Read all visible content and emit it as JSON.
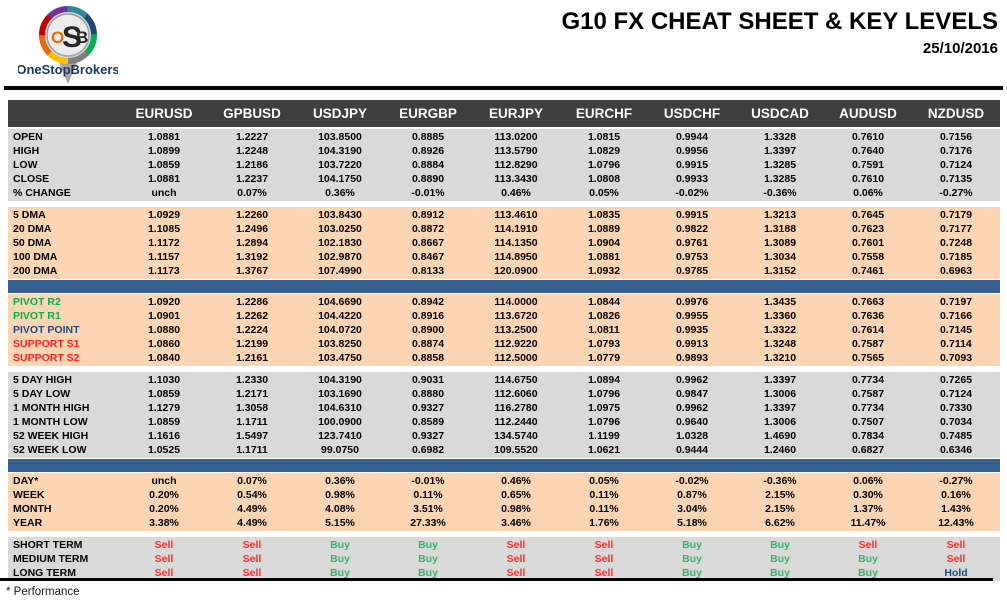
{
  "logo": {
    "monogram_o": "O",
    "monogram_s": "S",
    "monogram_b": "B",
    "subtext": "OneStopBrokers",
    "ring_colors": [
      "#7030a0",
      "#c00000",
      "#e36c0a",
      "#ffc000",
      "#31859c",
      "#1f497d",
      "#00b050",
      "#7f7f7f"
    ]
  },
  "header": {
    "title": "G10 FX CHEAT SHEET & KEY LEVELS",
    "date": "25/10/2016"
  },
  "footnote": "* Performance",
  "colors": {
    "header_bg": "#3f3f3f",
    "section_gray": "#d9d9d9",
    "section_peach": "#fcd5b4",
    "separator_blue": "#376092",
    "green": "#00b050",
    "red": "#ff1f1f",
    "navy": "#1f497d",
    "buy": "#3cb06e",
    "sell": "#ff2e2e",
    "hold": "#1f497d"
  },
  "table": {
    "columns": [
      "EURUSD",
      "GPBUSD",
      "USDJPY",
      "EURGBP",
      "EURJPY",
      "EURCHF",
      "USDCHF",
      "USDCAD",
      "AUDUSD",
      "NZDUSD"
    ],
    "sections": [
      {
        "id": "ohlc",
        "theme": "gray",
        "separator_before": "none",
        "signals": false,
        "rows": [
          {
            "label": "OPEN",
            "values": [
              "1.0881",
              "1.2227",
              "103.8500",
              "0.8885",
              "113.0200",
              "1.0815",
              "0.9944",
              "1.3328",
              "0.7610",
              "0.7156"
            ]
          },
          {
            "label": "HIGH",
            "values": [
              "1.0899",
              "1.2248",
              "104.3190",
              "0.8926",
              "113.5790",
              "1.0829",
              "0.9956",
              "1.3397",
              "0.7640",
              "0.7176"
            ]
          },
          {
            "label": "LOW",
            "values": [
              "1.0859",
              "1.2186",
              "103.7220",
              "0.8884",
              "112.8290",
              "1.0796",
              "0.9915",
              "1.3285",
              "0.7591",
              "0.7124"
            ]
          },
          {
            "label": "CLOSE",
            "values": [
              "1.0881",
              "1.2237",
              "104.1750",
              "0.8890",
              "113.3430",
              "1.0808",
              "0.9933",
              "1.3285",
              "0.7610",
              "0.7135"
            ]
          },
          {
            "label": "% CHANGE",
            "values": [
              "unch",
              "0.07%",
              "0.36%",
              "-0.01%",
              "0.46%",
              "0.05%",
              "-0.02%",
              "-0.36%",
              "0.06%",
              "-0.27%"
            ]
          }
        ]
      },
      {
        "id": "dma",
        "theme": "peach",
        "separator_before": "gap",
        "signals": false,
        "rows": [
          {
            "label": "5 DMA",
            "values": [
              "1.0929",
              "1.2260",
              "103.8430",
              "0.8912",
              "113.4610",
              "1.0835",
              "0.9915",
              "1.3213",
              "0.7645",
              "0.7179"
            ]
          },
          {
            "label": "20 DMA",
            "values": [
              "1.1085",
              "1.2496",
              "103.0250",
              "0.8872",
              "114.1910",
              "1.0889",
              "0.9822",
              "1.3188",
              "0.7623",
              "0.7177"
            ]
          },
          {
            "label": "50 DMA",
            "values": [
              "1.1172",
              "1.2894",
              "102.1830",
              "0.8667",
              "114.1350",
              "1.0904",
              "0.9761",
              "1.3089",
              "0.7601",
              "0.7248"
            ]
          },
          {
            "label": "100 DMA",
            "values": [
              "1.1157",
              "1.3192",
              "102.9870",
              "0.8467",
              "114.8950",
              "1.0881",
              "0.9753",
              "1.3034",
              "0.7558",
              "0.7185"
            ]
          },
          {
            "label": "200 DMA",
            "values": [
              "1.1173",
              "1.3767",
              "107.4990",
              "0.8133",
              "120.0900",
              "1.0932",
              "0.9785",
              "1.3152",
              "0.7461",
              "0.6963"
            ]
          }
        ]
      },
      {
        "id": "pivots",
        "theme": "peach",
        "separator_before": "blue-bar",
        "signals": false,
        "rows": [
          {
            "label": "PIVOT R2",
            "label_color": "green",
            "values": [
              "1.0920",
              "1.2286",
              "104.6690",
              "0.8942",
              "114.0000",
              "1.0844",
              "0.9976",
              "1.3435",
              "0.7663",
              "0.7197"
            ]
          },
          {
            "label": "PIVOT R1",
            "label_color": "green",
            "values": [
              "1.0901",
              "1.2262",
              "104.4220",
              "0.8916",
              "113.6720",
              "1.0826",
              "0.9955",
              "1.3360",
              "0.7636",
              "0.7166"
            ]
          },
          {
            "label": "PIVOT POINT",
            "label_color": "navy",
            "values": [
              "1.0880",
              "1.2224",
              "104.0720",
              "0.8900",
              "113.2500",
              "1.0811",
              "0.9935",
              "1.3322",
              "0.7614",
              "0.7145"
            ]
          },
          {
            "label": "SUPPORT S1",
            "label_color": "red",
            "values": [
              "1.0860",
              "1.2199",
              "103.8250",
              "0.8874",
              "112.9220",
              "1.0793",
              "0.9913",
              "1.3248",
              "0.7587",
              "0.7114"
            ]
          },
          {
            "label": "SUPPORT S2",
            "label_color": "red",
            "values": [
              "1.0840",
              "1.2161",
              "103.4750",
              "0.8858",
              "112.5000",
              "1.0779",
              "0.9893",
              "1.3210",
              "0.7565",
              "0.7093"
            ]
          }
        ]
      },
      {
        "id": "ranges",
        "theme": "gray",
        "separator_before": "gap",
        "signals": false,
        "rows": [
          {
            "label": "5 DAY HIGH",
            "values": [
              "1.1030",
              "1.2330",
              "104.3190",
              "0.9031",
              "114.6750",
              "1.0894",
              "0.9962",
              "1.3397",
              "0.7734",
              "0.7265"
            ]
          },
          {
            "label": "5 DAY LOW",
            "values": [
              "1.0859",
              "1.2171",
              "103.1690",
              "0.8880",
              "112.6060",
              "1.0796",
              "0.9847",
              "1.3006",
              "0.7587",
              "0.7124"
            ]
          },
          {
            "label": "1 MONTH HIGH",
            "values": [
              "1.1279",
              "1.3058",
              "104.6310",
              "0.9327",
              "116.2780",
              "1.0975",
              "0.9962",
              "1.3397",
              "0.7734",
              "0.7330"
            ]
          },
          {
            "label": "1 MONTH LOW",
            "values": [
              "1.0859",
              "1.1711",
              "100.0900",
              "0.8589",
              "112.2440",
              "1.0796",
              "0.9640",
              "1.3006",
              "0.7507",
              "0.7034"
            ]
          },
          {
            "label": "52 WEEK HIGH",
            "values": [
              "1.1616",
              "1.5497",
              "123.7410",
              "0.9327",
              "134.5740",
              "1.1199",
              "1.0328",
              "1.4690",
              "0.7834",
              "0.7485"
            ]
          },
          {
            "label": "52 WEEK LOW",
            "values": [
              "1.0525",
              "1.1711",
              "99.0750",
              "0.6982",
              "109.5520",
              "1.0621",
              "0.9444",
              "1.2460",
              "0.6827",
              "0.6346"
            ]
          }
        ]
      },
      {
        "id": "performance",
        "theme": "peach",
        "separator_before": "blue-bar",
        "signals": false,
        "rows": [
          {
            "label": "DAY*",
            "values": [
              "unch",
              "0.07%",
              "0.36%",
              "-0.01%",
              "0.46%",
              "0.05%",
              "-0.02%",
              "-0.36%",
              "0.06%",
              "-0.27%"
            ]
          },
          {
            "label": "WEEK",
            "values": [
              "0.20%",
              "0.54%",
              "0.98%",
              "0.11%",
              "0.65%",
              "0.11%",
              "0.87%",
              "2.15%",
              "0.30%",
              "0.16%"
            ]
          },
          {
            "label": "MONTH",
            "values": [
              "0.20%",
              "4.49%",
              "4.08%",
              "3.51%",
              "0.98%",
              "0.11%",
              "3.04%",
              "2.15%",
              "1.37%",
              "1.43%"
            ]
          },
          {
            "label": "YEAR",
            "values": [
              "3.38%",
              "4.49%",
              "5.15%",
              "27.33%",
              "3.46%",
              "1.76%",
              "5.18%",
              "6.62%",
              "11.47%",
              "12.43%"
            ]
          }
        ]
      },
      {
        "id": "trend",
        "theme": "gray",
        "separator_before": "gap",
        "signals": true,
        "rows": [
          {
            "label": "SHORT TERM",
            "values": [
              "Sell",
              "Sell",
              "Buy",
              "Buy",
              "Sell",
              "Sell",
              "Buy",
              "Buy",
              "Sell",
              "Sell"
            ]
          },
          {
            "label": "MEDIUM TERM",
            "values": [
              "Sell",
              "Sell",
              "Buy",
              "Buy",
              "Sell",
              "Sell",
              "Buy",
              "Buy",
              "Buy",
              "Sell"
            ]
          },
          {
            "label": "LONG TERM",
            "values": [
              "Sell",
              "Sell",
              "Buy",
              "Buy",
              "Sell",
              "Sell",
              "Buy",
              "Buy",
              "Buy",
              "Hold"
            ]
          }
        ]
      }
    ]
  }
}
